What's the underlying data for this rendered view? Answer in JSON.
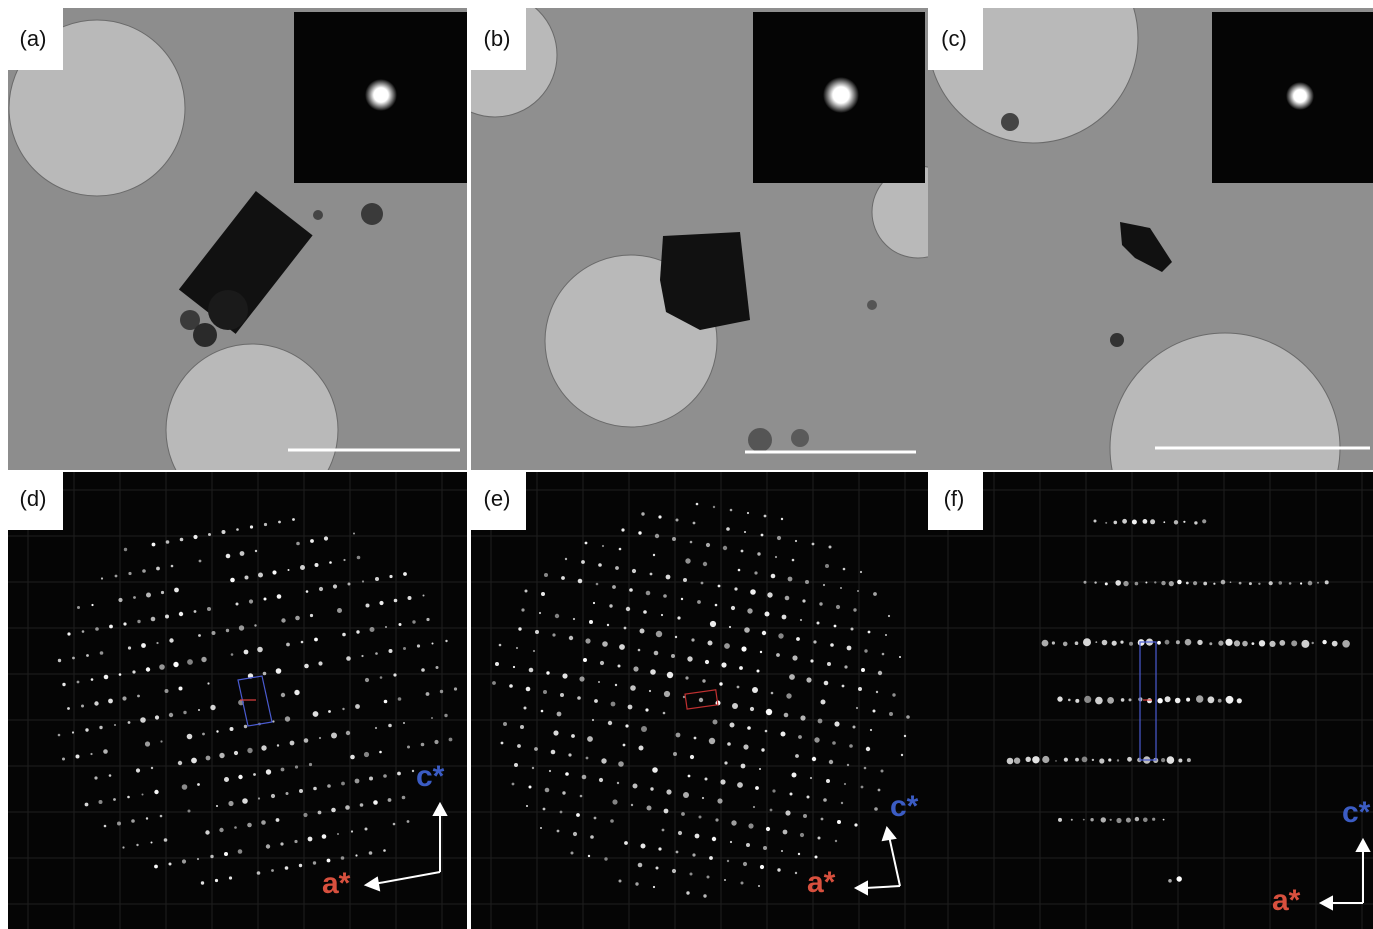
{
  "panels": [
    {
      "label": "(a)"
    },
    {
      "label": "(b)"
    },
    {
      "label": "(c)"
    },
    {
      "label": "(d)",
      "axes": {
        "vertical": "c*",
        "horizontal": "a*"
      }
    },
    {
      "label": "(e)",
      "axes": {
        "vertical": "c*",
        "horizontal": "a*"
      }
    },
    {
      "label": "(f)",
      "axes": {
        "vertical": "c*",
        "horizontal": "a*"
      }
    }
  ]
}
